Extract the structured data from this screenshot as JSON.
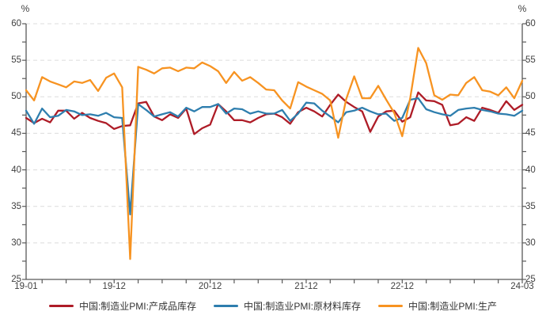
{
  "chart_data": {
    "type": "line",
    "title": "",
    "unit_label": "%",
    "x_start": "2019-01",
    "x_end": "2024-03",
    "frequency": "monthly",
    "ylim": [
      25,
      60
    ],
    "y_ticks": [
      25,
      30,
      35,
      40,
      45,
      50,
      55,
      60
    ],
    "y_minor_tick_step": 2.5,
    "grid": "horizontal-dashed",
    "legend_position": "bottom",
    "x_tick_labels": [
      {
        "label": "19-01",
        "month_index": 0
      },
      {
        "label": "19-12",
        "month_index": 11
      },
      {
        "label": "20-12",
        "month_index": 23
      },
      {
        "label": "21-12",
        "month_index": 35
      },
      {
        "label": "22-12",
        "month_index": 47
      },
      {
        "label": "24-03",
        "month_index": 62
      }
    ],
    "style": {
      "axis_color": "#595959",
      "grid_color": "#DCDCDC",
      "text_color": "#404040",
      "background": "#FFFFFF"
    },
    "series": [
      {
        "id": "finished-goods-inventory",
        "name": "中国:制造业PMI:产成品库存",
        "color": "#AE1C27",
        "values": [
          47.1,
          46.4,
          47.0,
          46.5,
          48.1,
          48.1,
          47.0,
          47.8,
          47.1,
          46.7,
          46.4,
          45.6,
          46.0,
          46.1,
          49.1,
          49.3,
          47.3,
          46.8,
          47.6,
          47.1,
          48.4,
          44.9,
          45.7,
          46.2,
          49.0,
          48.0,
          46.8,
          46.8,
          46.5,
          47.1,
          47.6,
          47.7,
          47.2,
          46.3,
          47.9,
          48.5,
          48.0,
          47.3,
          48.9,
          50.3,
          49.3,
          48.6,
          48.0,
          45.2,
          47.3,
          48.0,
          48.1,
          46.6,
          47.2,
          50.6,
          49.5,
          49.4,
          48.9,
          46.1,
          46.3,
          47.2,
          46.7,
          48.5,
          48.2,
          47.8,
          49.4,
          48.2,
          48.9
        ]
      },
      {
        "id": "raw-materials-inventory",
        "name": "中国:制造业PMI:原材料库存",
        "color": "#2E7EAE",
        "values": [
          48.1,
          46.3,
          48.4,
          47.2,
          47.4,
          48.2,
          48.0,
          47.5,
          47.6,
          47.4,
          47.8,
          47.2,
          47.1,
          33.9,
          49.0,
          48.2,
          47.3,
          47.6,
          47.9,
          47.3,
          48.5,
          48.0,
          48.6,
          48.6,
          49.0,
          47.7,
          48.4,
          48.3,
          47.7,
          48.0,
          47.7,
          47.7,
          48.2,
          46.7,
          47.7,
          49.2,
          49.1,
          48.1,
          47.3,
          46.5,
          47.9,
          48.1,
          48.5,
          48.0,
          47.6,
          47.7,
          46.7,
          47.1,
          49.6,
          49.8,
          48.3,
          47.9,
          47.6,
          47.4,
          48.2,
          48.4,
          48.5,
          48.2,
          48.0,
          47.7,
          47.6,
          47.4,
          48.1
        ]
      },
      {
        "id": "production",
        "name": "中国:制造业PMI:生产",
        "color": "#F79321",
        "values": [
          50.9,
          49.5,
          52.7,
          52.1,
          51.7,
          51.3,
          52.1,
          51.9,
          52.3,
          50.8,
          52.6,
          53.2,
          51.3,
          27.8,
          54.1,
          53.7,
          53.2,
          53.9,
          54.0,
          53.5,
          54.0,
          53.9,
          54.7,
          54.2,
          53.5,
          51.9,
          53.4,
          52.2,
          52.7,
          51.9,
          51.0,
          50.9,
          49.5,
          48.4,
          52.0,
          51.4,
          50.9,
          50.4,
          49.5,
          44.4,
          49.7,
          52.8,
          49.8,
          49.8,
          51.5,
          49.6,
          47.8,
          44.6,
          49.8,
          56.7,
          54.6,
          50.2,
          49.6,
          50.3,
          50.2,
          51.9,
          52.7,
          50.9,
          50.7,
          50.2,
          51.3,
          49.8,
          52.2
        ]
      }
    ]
  }
}
